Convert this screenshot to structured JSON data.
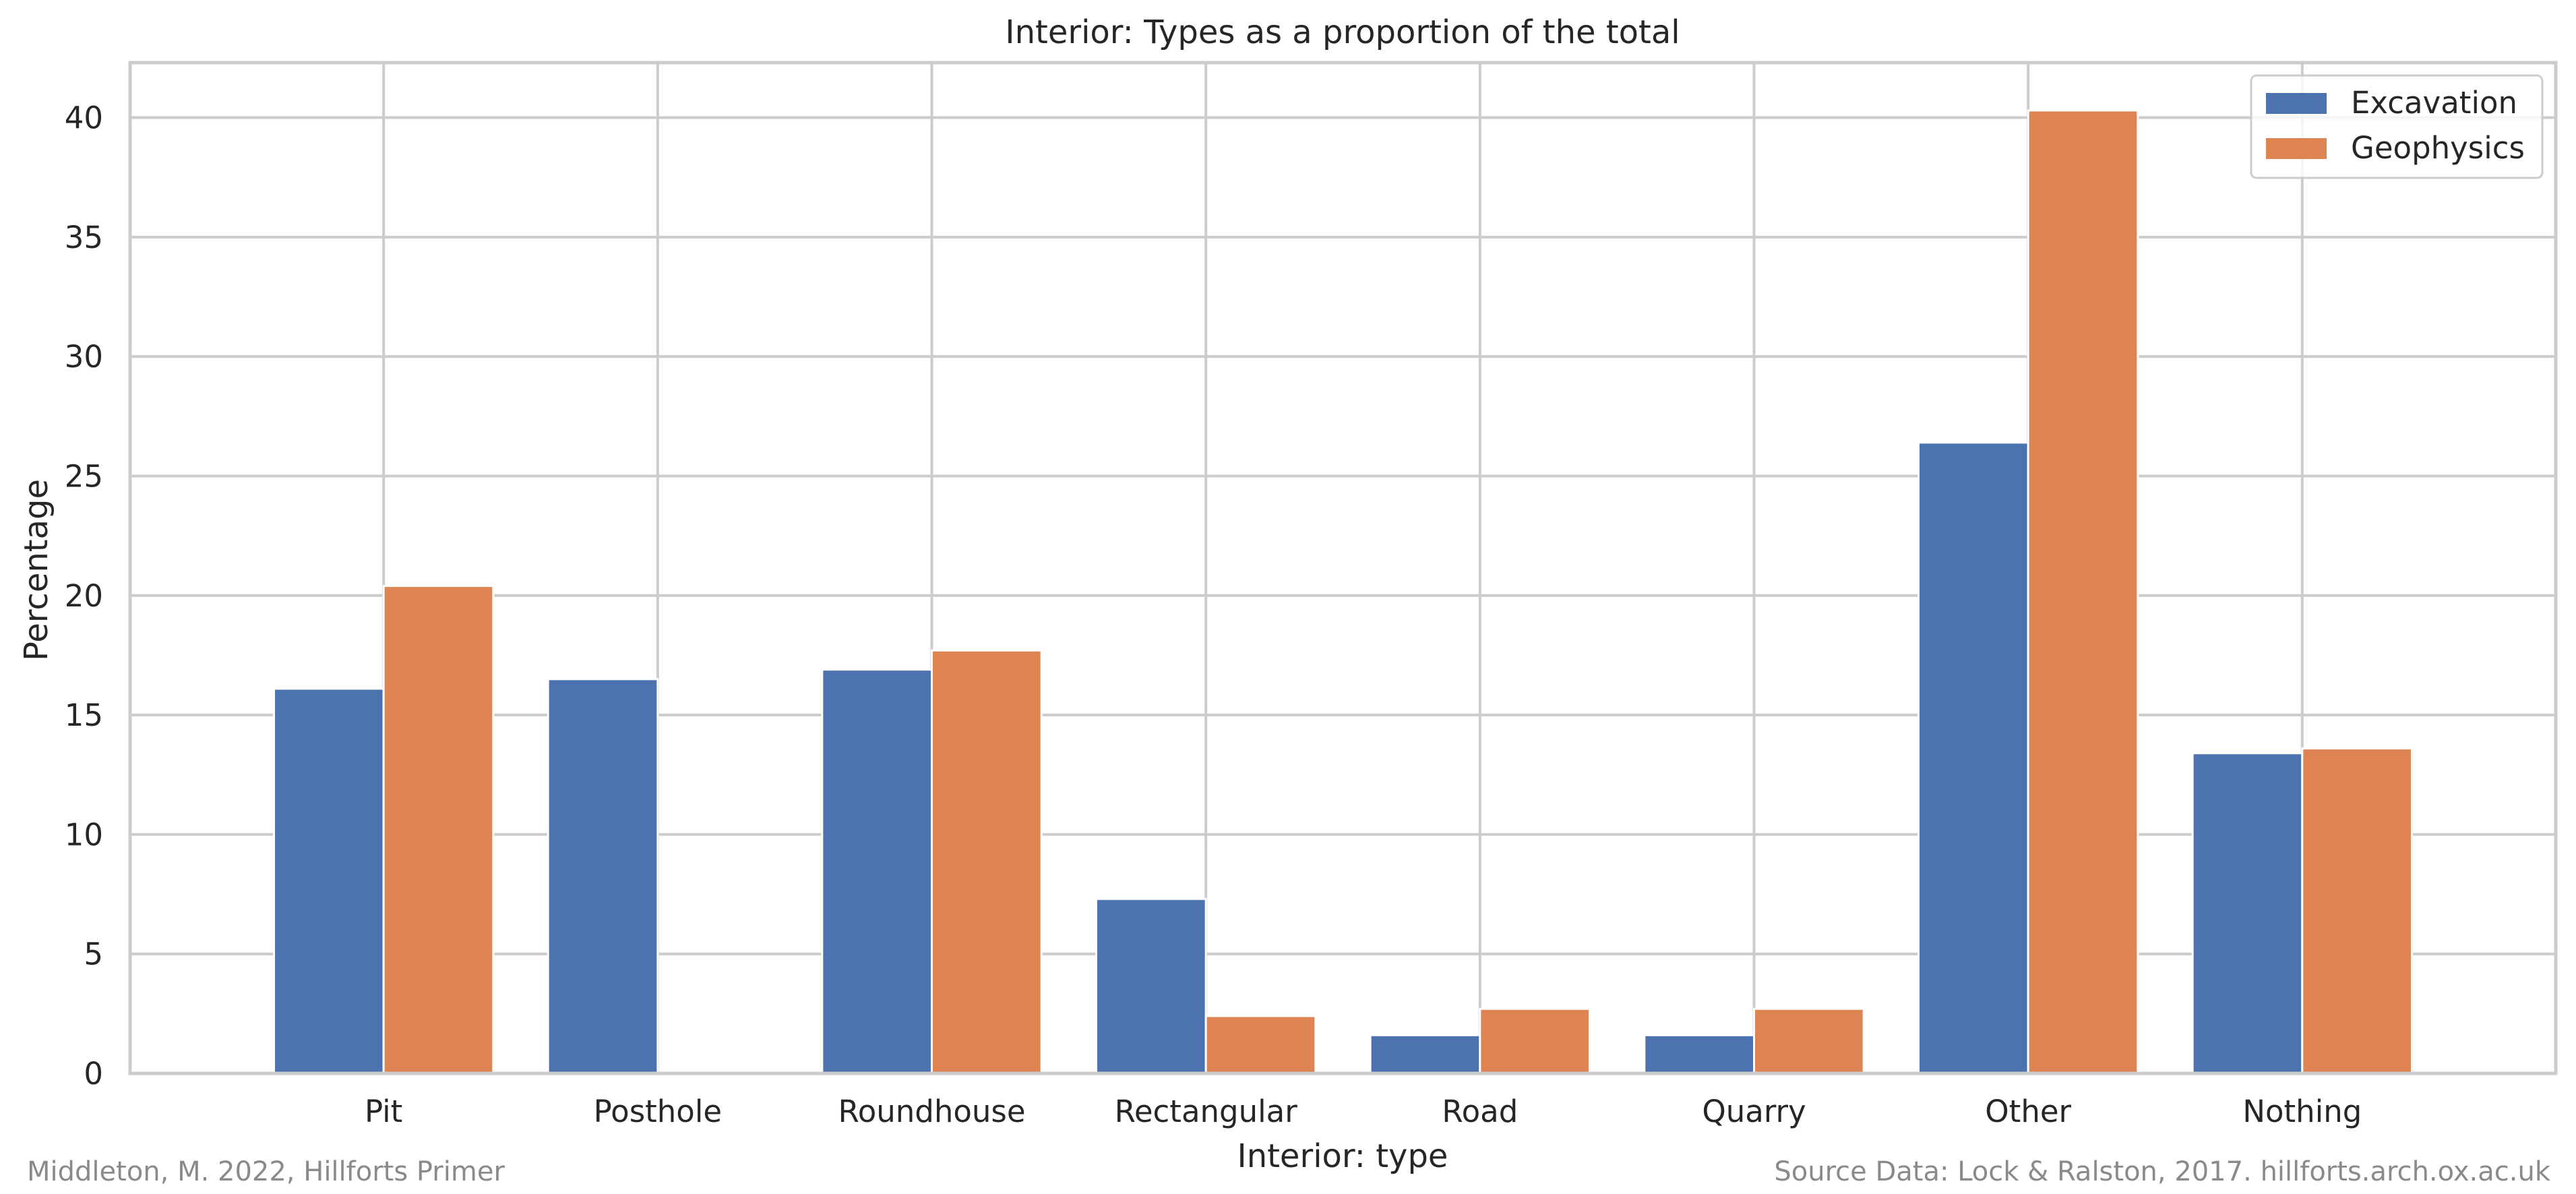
{
  "chart_data": {
    "type": "bar",
    "title": "Interior: Types as a proportion of the total",
    "xlabel": "Interior: type",
    "ylabel": "Percentage",
    "categories": [
      "Pit",
      "Posthole",
      "Roundhouse",
      "Rectangular",
      "Road",
      "Quarry",
      "Other",
      "Nothing"
    ],
    "series": [
      {
        "name": "Excavation",
        "color": "#4c72b0",
        "values": [
          16.1,
          16.5,
          16.9,
          7.3,
          1.6,
          1.6,
          26.4,
          13.4
        ]
      },
      {
        "name": "Geophysics",
        "color": "#dd8452",
        "values": [
          20.4,
          0.0,
          17.7,
          2.4,
          2.7,
          2.7,
          40.3,
          13.6
        ]
      }
    ],
    "ylim": [
      0,
      42.3
    ],
    "yticks": [
      0,
      5,
      10,
      15,
      20,
      25,
      30,
      35,
      40
    ],
    "grid": true,
    "legend_position": "top-right"
  },
  "footer": {
    "left": "Middleton, M. 2022, Hillforts Primer",
    "right": "Source Data: Lock & Ralston, 2017. hillforts.arch.ox.ac.uk"
  }
}
